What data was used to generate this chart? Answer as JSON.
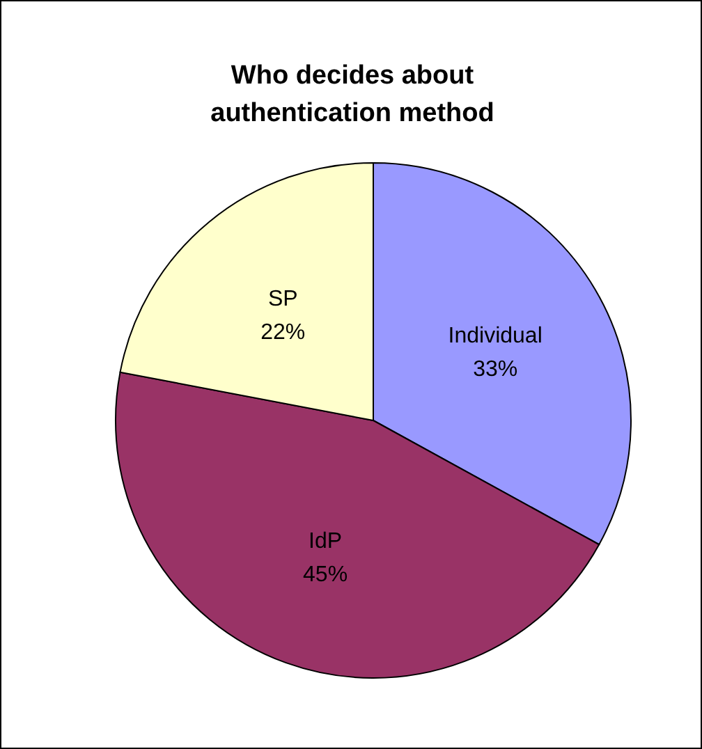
{
  "chart_data": {
    "type": "pie",
    "title": "Who decides about authentication method",
    "categories": [
      "Individual",
      "IdP",
      "SP"
    ],
    "values": [
      33,
      45,
      22
    ],
    "value_labels": [
      "33%",
      "45%",
      "22%"
    ],
    "colors": [
      "#9999ff",
      "#993366",
      "#ffffcc"
    ]
  }
}
